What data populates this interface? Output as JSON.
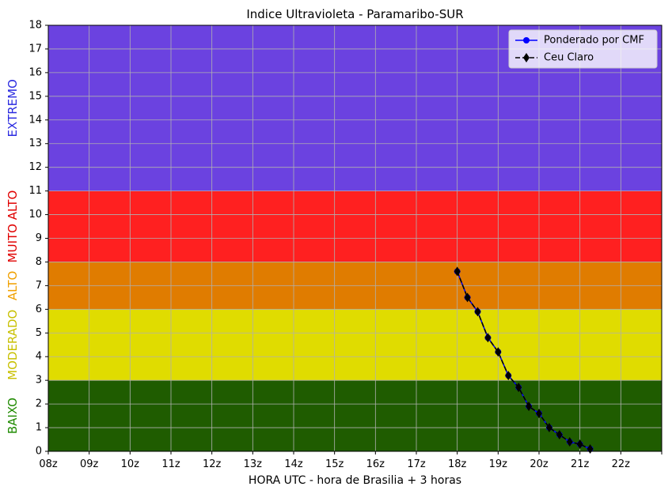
{
  "chart_data": {
    "type": "line",
    "title": "Indice Ultravioleta - Paramaribo-SUR",
    "xlabel": "HORA UTC - hora de Brasilia + 3 horas",
    "ylabel": "",
    "xlim": [
      8,
      23
    ],
    "ylim": [
      0,
      18
    ],
    "x_ticks": [
      {
        "x": 8,
        "label": "08z"
      },
      {
        "x": 9,
        "label": "09z"
      },
      {
        "x": 10,
        "label": "10z"
      },
      {
        "x": 11,
        "label": "11z"
      },
      {
        "x": 12,
        "label": "12z"
      },
      {
        "x": 13,
        "label": "13z"
      },
      {
        "x": 14,
        "label": "14z"
      },
      {
        "x": 15,
        "label": "15z"
      },
      {
        "x": 16,
        "label": "16z"
      },
      {
        "x": 17,
        "label": "17z"
      },
      {
        "x": 18,
        "label": "18z"
      },
      {
        "x": 19,
        "label": "19z"
      },
      {
        "x": 20,
        "label": "20z"
      },
      {
        "x": 21,
        "label": "21z"
      },
      {
        "x": 22,
        "label": "22z"
      },
      {
        "x": 23,
        "label": ""
      }
    ],
    "y_ticks": [
      0,
      1,
      2,
      3,
      4,
      5,
      6,
      7,
      8,
      9,
      10,
      11,
      12,
      13,
      14,
      15,
      16,
      17,
      18
    ],
    "grid": true,
    "legend_position": "top-right",
    "bands": [
      {
        "label": "BAIXO",
        "from": 0,
        "to": 3,
        "fill": "#1f5c00",
        "label_color": "#1f8a00"
      },
      {
        "label": "MODERADO",
        "from": 3,
        "to": 6,
        "fill": "#e0dc00",
        "label_color": "#c8c000"
      },
      {
        "label": "ALTO",
        "from": 6,
        "to": 8,
        "fill": "#e07c00",
        "label_color": "#f0a000"
      },
      {
        "label": "MUITO ALTO",
        "from": 8,
        "to": 11,
        "fill": "#ff2020",
        "label_color": "#e00000"
      },
      {
        "label": "EXTREMO",
        "from": 11,
        "to": 18,
        "fill": "#6b42e0",
        "label_color": "#2a2ae0"
      }
    ],
    "series": [
      {
        "name": "Ponderado por CMF",
        "color": "#0000ff",
        "marker": "circle",
        "linestyle": "solid",
        "x": [
          18.0,
          18.25,
          18.5,
          18.75,
          19.0,
          19.25,
          19.5,
          19.75,
          20.0,
          20.25,
          20.5,
          20.75,
          21.0,
          21.25
        ],
        "values": [
          7.6,
          6.5,
          5.9,
          4.8,
          4.2,
          3.2,
          2.7,
          1.9,
          1.6,
          1.0,
          0.7,
          0.4,
          0.3,
          0.1
        ]
      },
      {
        "name": "Ceu Claro",
        "color": "#000000",
        "marker": "diamond",
        "linestyle": "dashed",
        "x": [
          18.0,
          18.25,
          18.5,
          18.75,
          19.0,
          19.25,
          19.5,
          19.75,
          20.0,
          20.25,
          20.5,
          20.75,
          21.0,
          21.25
        ],
        "values": [
          7.6,
          6.5,
          5.9,
          4.8,
          4.2,
          3.2,
          2.7,
          1.9,
          1.6,
          1.0,
          0.7,
          0.4,
          0.3,
          0.1
        ]
      }
    ]
  }
}
